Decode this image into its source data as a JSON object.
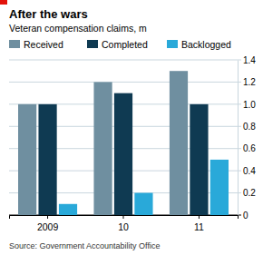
{
  "chart_data": {
    "type": "bar",
    "title": "After the wars",
    "subtitle": "Veteran compensation claims, m",
    "source": "Source: Government Accountability Office",
    "categories": [
      "2009",
      "10",
      "11"
    ],
    "series": [
      {
        "name": "Received",
        "color": "#6f8fa0",
        "values": [
          1.0,
          1.2,
          1.3
        ]
      },
      {
        "name": "Completed",
        "color": "#0f3a52",
        "values": [
          1.0,
          1.1,
          1.0
        ]
      },
      {
        "name": "Backlogged",
        "color": "#29a9d9",
        "values": [
          0.1,
          0.2,
          0.5
        ]
      }
    ],
    "ylim": [
      0,
      1.4
    ],
    "yticks": [
      0,
      0.2,
      0.4,
      0.6,
      0.8,
      {
        "value": 1,
        "label": "1.0"
      },
      1.2,
      1.4
    ],
    "grid": true,
    "legend": "top"
  }
}
